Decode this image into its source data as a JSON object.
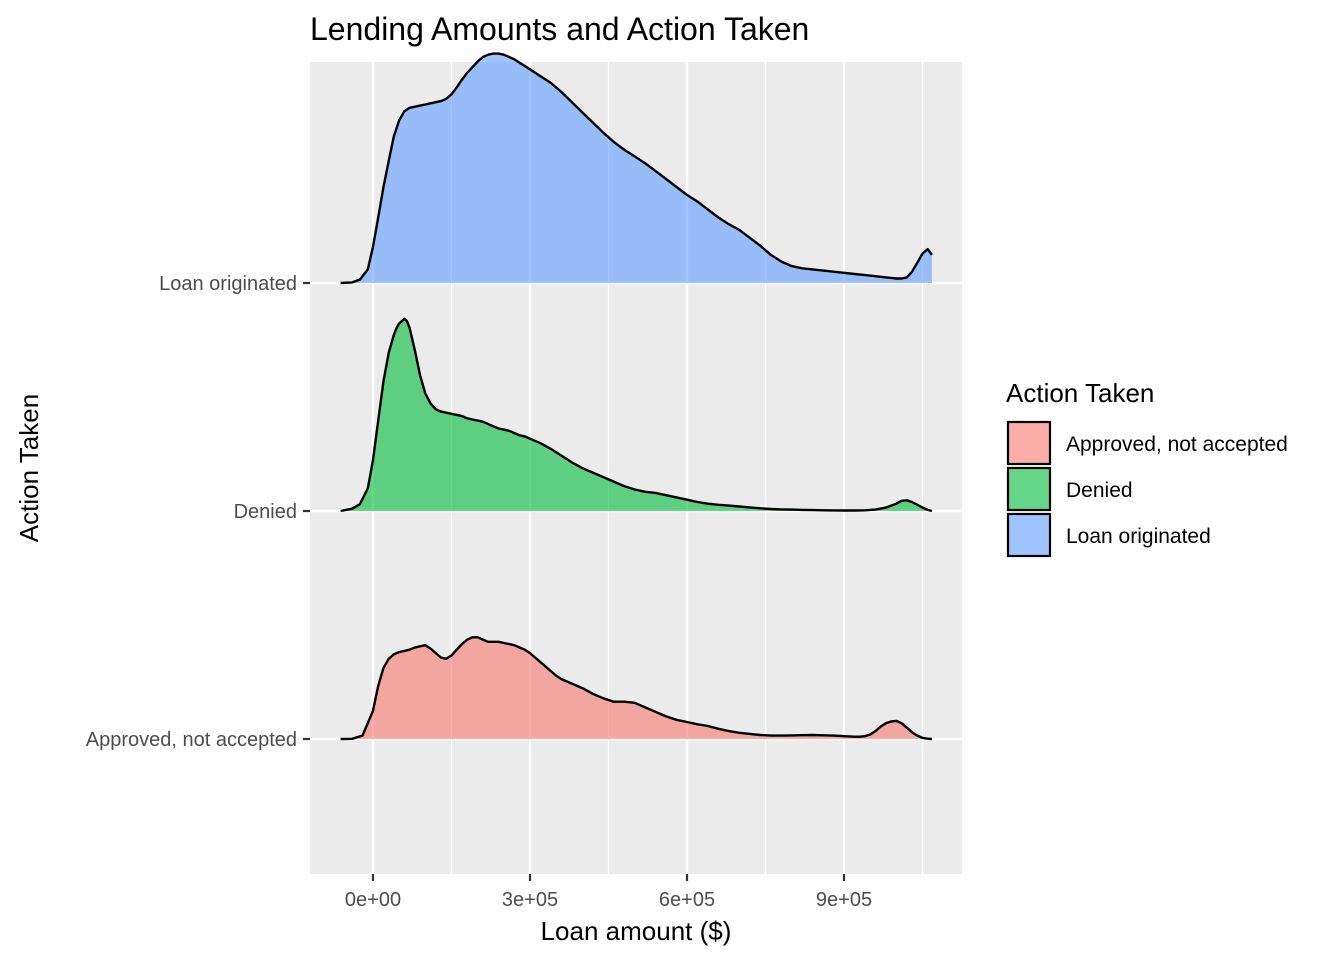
{
  "chart_data": {
    "type": "ridgeline",
    "title": "Lending Amounts and Action Taken",
    "xlabel": "Loan amount ($)",
    "ylabel": "Action Taken",
    "xlim": [
      -200000,
      1880000
    ],
    "x_ticks": [
      {
        "value": 0,
        "label": "0e+00"
      },
      {
        "value": 300000,
        "label": "3e+05"
      },
      {
        "value": 600000,
        "label": "6e+05"
      },
      {
        "value": 900000,
        "label": "9e+05"
      }
    ],
    "x_minor_ticks": [
      150000,
      450000,
      750000,
      1050000
    ],
    "grid": true,
    "legend": {
      "title": "Action Taken",
      "position": "right",
      "entries": [
        {
          "label": "Approved, not accepted",
          "color": "#F8766D"
        },
        {
          "label": "Denied",
          "color": "#00BA38"
        },
        {
          "label": "Loan originated",
          "color": "#619CFF"
        }
      ]
    },
    "categories": [
      "Approved, not accepted",
      "Denied",
      "Loan originated"
    ],
    "series": [
      {
        "name": "Approved, not accepted",
        "color": "#F8766D",
        "baseline_index": 0,
        "x": [
          -62000,
          -40000,
          -20000,
          0,
          10000,
          20000,
          30000,
          40000,
          50000,
          60000,
          70000,
          80000,
          90000,
          100000,
          110000,
          120000,
          130000,
          140000,
          150000,
          160000,
          170000,
          180000,
          190000,
          200000,
          210000,
          220000,
          230000,
          240000,
          250000,
          260000,
          270000,
          280000,
          290000,
          300000,
          310000,
          320000,
          330000,
          340000,
          350000,
          360000,
          370000,
          380000,
          390000,
          400000,
          420000,
          440000,
          460000,
          480000,
          500000,
          520000,
          540000,
          560000,
          580000,
          600000,
          620000,
          640000,
          660000,
          680000,
          700000,
          720000,
          740000,
          760000,
          780000,
          800000,
          820000,
          840000,
          860000,
          880000,
          900000,
          920000,
          930000,
          940000,
          950000,
          960000,
          970000,
          980000,
          990000,
          1000000,
          1010000,
          1020000,
          1030000,
          1040000,
          1050000,
          1060000,
          1068000
        ],
        "density": [
          0.0,
          0.002,
          0.03,
          0.25,
          0.47,
          0.63,
          0.71,
          0.75,
          0.77,
          0.78,
          0.79,
          0.81,
          0.82,
          0.83,
          0.8,
          0.76,
          0.72,
          0.71,
          0.74,
          0.79,
          0.84,
          0.88,
          0.9,
          0.9,
          0.88,
          0.86,
          0.86,
          0.86,
          0.85,
          0.84,
          0.83,
          0.81,
          0.79,
          0.76,
          0.72,
          0.68,
          0.64,
          0.6,
          0.56,
          0.53,
          0.51,
          0.49,
          0.47,
          0.45,
          0.4,
          0.36,
          0.33,
          0.33,
          0.32,
          0.28,
          0.24,
          0.2,
          0.17,
          0.15,
          0.13,
          0.115,
          0.09,
          0.07,
          0.055,
          0.045,
          0.035,
          0.03,
          0.03,
          0.032,
          0.034,
          0.035,
          0.033,
          0.03,
          0.025,
          0.02,
          0.02,
          0.025,
          0.04,
          0.07,
          0.11,
          0.14,
          0.155,
          0.16,
          0.14,
          0.1,
          0.06,
          0.03,
          0.01,
          0.003,
          0.0
        ]
      },
      {
        "name": "Denied",
        "color": "#00BA38",
        "baseline_index": 1,
        "x": [
          -62000,
          -40000,
          -25000,
          -10000,
          0,
          10000,
          20000,
          30000,
          40000,
          45000,
          50000,
          55000,
          60000,
          65000,
          70000,
          80000,
          90000,
          100000,
          110000,
          120000,
          130000,
          140000,
          150000,
          160000,
          170000,
          180000,
          190000,
          200000,
          210000,
          220000,
          230000,
          240000,
          250000,
          260000,
          270000,
          280000,
          290000,
          300000,
          320000,
          340000,
          360000,
          380000,
          400000,
          420000,
          440000,
          460000,
          480000,
          500000,
          520000,
          540000,
          560000,
          580000,
          600000,
          620000,
          640000,
          660000,
          680000,
          700000,
          720000,
          740000,
          760000,
          780000,
          800000,
          820000,
          840000,
          860000,
          880000,
          900000,
          920000,
          940000,
          960000,
          980000,
          1000000,
          1010000,
          1020000,
          1030000,
          1040000,
          1050000,
          1060000,
          1068000
        ],
        "density": [
          0.0,
          0.02,
          0.06,
          0.2,
          0.45,
          0.8,
          1.15,
          1.4,
          1.56,
          1.62,
          1.66,
          1.68,
          1.7,
          1.68,
          1.62,
          1.42,
          1.2,
          1.04,
          0.95,
          0.9,
          0.88,
          0.87,
          0.86,
          0.85,
          0.84,
          0.82,
          0.81,
          0.8,
          0.79,
          0.77,
          0.75,
          0.73,
          0.72,
          0.71,
          0.69,
          0.67,
          0.66,
          0.64,
          0.6,
          0.55,
          0.49,
          0.43,
          0.38,
          0.34,
          0.3,
          0.26,
          0.22,
          0.19,
          0.17,
          0.16,
          0.14,
          0.12,
          0.1,
          0.08,
          0.065,
          0.055,
          0.048,
          0.04,
          0.032,
          0.024,
          0.018,
          0.014,
          0.012,
          0.01,
          0.008,
          0.006,
          0.005,
          0.004,
          0.004,
          0.006,
          0.012,
          0.03,
          0.065,
          0.09,
          0.095,
          0.08,
          0.055,
          0.03,
          0.01,
          0.0
        ]
      },
      {
        "name": "Loan originated",
        "color": "#619CFF",
        "baseline_index": 2,
        "x": [
          -62000,
          -40000,
          -25000,
          -10000,
          0,
          10000,
          20000,
          30000,
          40000,
          50000,
          60000,
          70000,
          80000,
          90000,
          100000,
          110000,
          120000,
          130000,
          140000,
          150000,
          160000,
          170000,
          180000,
          190000,
          200000,
          210000,
          220000,
          230000,
          240000,
          250000,
          260000,
          270000,
          280000,
          290000,
          300000,
          320000,
          340000,
          360000,
          380000,
          400000,
          420000,
          440000,
          460000,
          480000,
          500000,
          520000,
          540000,
          560000,
          580000,
          600000,
          620000,
          640000,
          660000,
          680000,
          700000,
          720000,
          740000,
          760000,
          780000,
          800000,
          820000,
          840000,
          860000,
          880000,
          900000,
          920000,
          940000,
          960000,
          980000,
          1000000,
          1010000,
          1020000,
          1030000,
          1040000,
          1050000,
          1060000,
          1068000
        ],
        "density": [
          0.0,
          0.005,
          0.03,
          0.12,
          0.32,
          0.58,
          0.85,
          1.08,
          1.3,
          1.44,
          1.52,
          1.55,
          1.56,
          1.57,
          1.58,
          1.59,
          1.6,
          1.61,
          1.63,
          1.67,
          1.73,
          1.8,
          1.86,
          1.91,
          1.96,
          2.0,
          2.02,
          2.03,
          2.03,
          2.02,
          2.0,
          1.98,
          1.95,
          1.92,
          1.89,
          1.83,
          1.77,
          1.69,
          1.6,
          1.51,
          1.42,
          1.33,
          1.25,
          1.18,
          1.12,
          1.06,
          0.99,
          0.92,
          0.85,
          0.78,
          0.72,
          0.65,
          0.58,
          0.52,
          0.47,
          0.4,
          0.33,
          0.25,
          0.19,
          0.15,
          0.13,
          0.12,
          0.11,
          0.1,
          0.09,
          0.08,
          0.07,
          0.06,
          0.05,
          0.04,
          0.04,
          0.05,
          0.1,
          0.18,
          0.26,
          0.3,
          0.25
        ]
      }
    ]
  }
}
